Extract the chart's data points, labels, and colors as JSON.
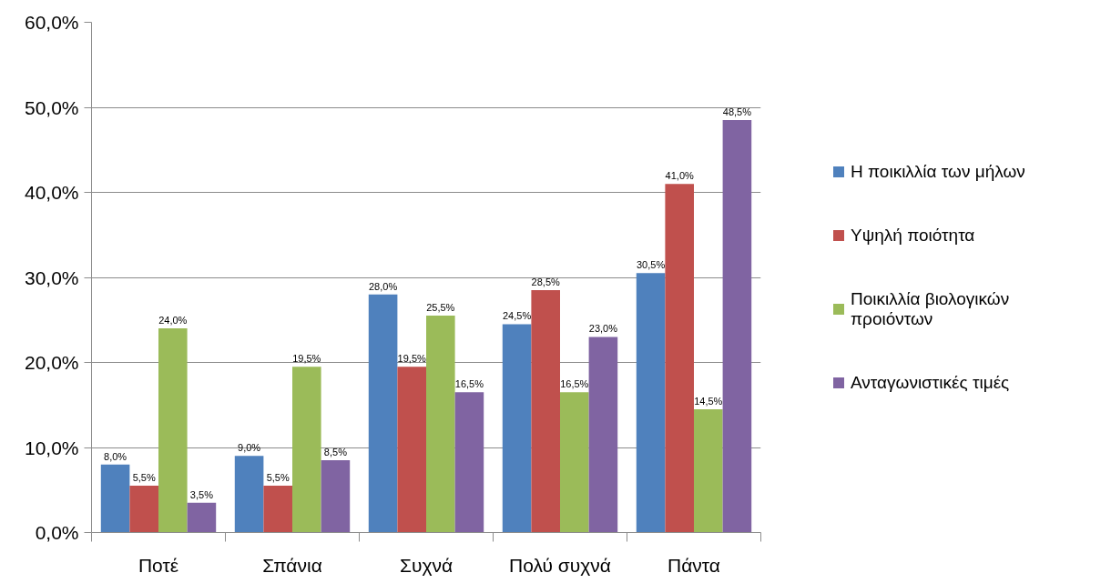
{
  "chart_data": {
    "type": "bar",
    "categories": [
      "Ποτέ",
      "Σπάνια",
      "Συχνά",
      "Πολύ συχνά",
      "Πάντα"
    ],
    "series": [
      {
        "name": "Η ποικιλλία των μήλων",
        "color": "#4f81bd",
        "values": [
          8.0,
          9.0,
          28.0,
          24.5,
          30.5
        ],
        "value_labels": [
          "8,0%",
          "9,0%",
          "28,0%",
          "24,5%",
          "30,5%"
        ]
      },
      {
        "name": "Υψηλή ποιότητα",
        "color": "#c0504d",
        "values": [
          5.5,
          5.5,
          19.5,
          28.5,
          41.0
        ],
        "value_labels": [
          "5,5%",
          "5,5%",
          "19,5%",
          "28,5%",
          "41,0%"
        ]
      },
      {
        "name": "Ποικιλλία βιολογικών προιόντων",
        "color": "#9bbb59",
        "values": [
          24.0,
          19.5,
          25.5,
          16.5,
          14.5
        ],
        "value_labels": [
          "24,0%",
          "19,5%",
          "25,5%",
          "16,5%",
          "14,5%"
        ]
      },
      {
        "name": "Ανταγωνιστικές τιμές",
        "color": "#8064a2",
        "values": [
          3.5,
          8.5,
          16.5,
          23.0,
          48.5
        ],
        "value_labels": [
          "3,5%",
          "8,5%",
          "16,5%",
          "23,0%",
          "48,5%"
        ]
      }
    ],
    "ylim": [
      0,
      60
    ],
    "yticks": [
      {
        "value": 0,
        "label": "0,0%"
      },
      {
        "value": 10,
        "label": "10,0%"
      },
      {
        "value": 20,
        "label": "20,0%"
      },
      {
        "value": 30,
        "label": "30,0%"
      },
      {
        "value": 40,
        "label": "40,0%"
      },
      {
        "value": 50,
        "label": "50,0%"
      },
      {
        "value": 60,
        "label": "60,0%"
      }
    ],
    "grid": "y",
    "legend": "right"
  }
}
